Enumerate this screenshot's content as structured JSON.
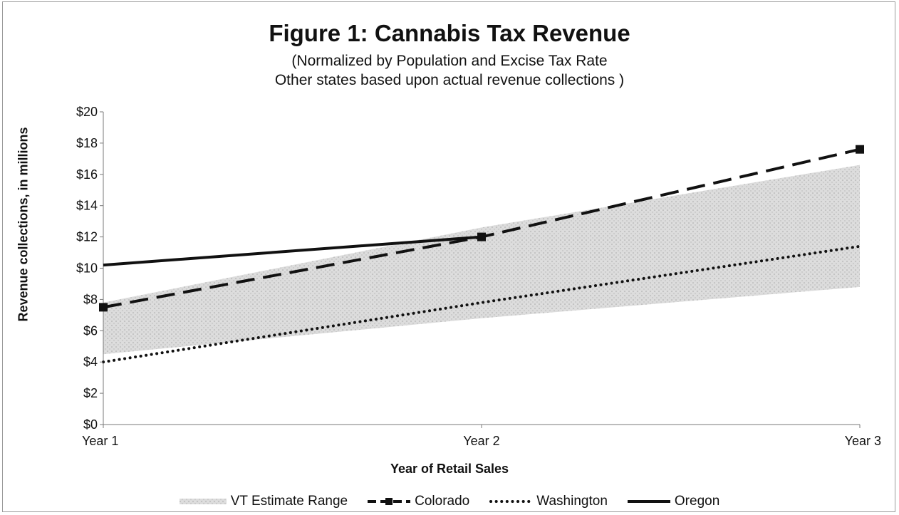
{
  "chart_data": {
    "type": "line",
    "title": "Figure 1: Cannabis Tax Revenue",
    "subtitle_lines": [
      "(Normalized by Population and Excise Tax Rate",
      "Other states based upon actual revenue collections )"
    ],
    "xlabel": "Year of Retail Sales",
    "ylabel": "Revenue collections, in millions",
    "categories": [
      "Year 1",
      "Year 2",
      "Year 3"
    ],
    "ylim": [
      0,
      20
    ],
    "yticks": [
      "$0",
      "$2",
      "$4",
      "$6",
      "$8",
      "$10",
      "$12",
      "$14",
      "$16",
      "$18",
      "$20"
    ],
    "band": {
      "name": "VT Estimate Range",
      "low": [
        4.5,
        6.8,
        8.8
      ],
      "high": [
        7.8,
        12.6,
        16.6
      ],
      "color": "#c8c8c8"
    },
    "series": [
      {
        "name": "Colorado",
        "values": [
          7.5,
          12.0,
          17.6
        ],
        "style": "dashed",
        "marker": "square",
        "color": "#111111"
      },
      {
        "name": "Washington",
        "values": [
          4.0,
          7.8,
          11.4
        ],
        "style": "dotted",
        "marker": "none",
        "color": "#111111"
      },
      {
        "name": "Oregon",
        "values": [
          10.2,
          12.0,
          null
        ],
        "style": "solid",
        "marker": "none",
        "color": "#111111"
      }
    ],
    "grid": false,
    "legend_position": "bottom"
  }
}
